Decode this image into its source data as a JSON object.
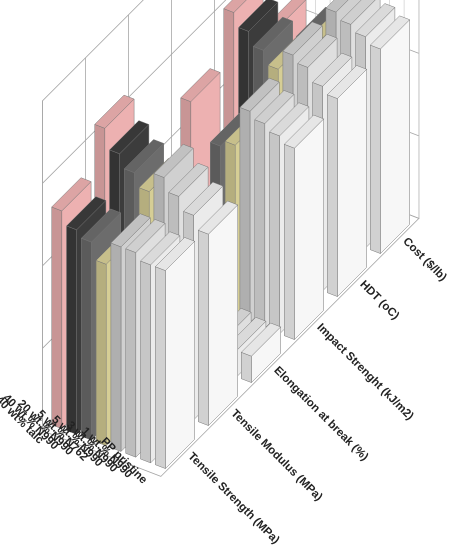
{
  "chart_data": {
    "type": "bar",
    "subtype": "3d-grouped-bar",
    "title": "",
    "categories": [
      "PP pristine",
      "1 wt.% N990",
      "3 wt.% N990",
      "5 wt.% N990",
      "5 wt.% N762",
      "20 wt.% N990",
      "40 wt.% N990",
      "PP / 40 wt% talc"
    ],
    "properties": [
      "Tensile Strength (MPa)",
      "Tensile Modulus (MPa)",
      "Elongation at break (%)",
      "Impact Strenght (kJ/m2)",
      "HDT (oC)",
      "Cost ($/lb)"
    ],
    "series_colors": [
      "#ffffff",
      "#f2f2f2",
      "#e6e6e6",
      "#d6d6d6",
      "#ddd49a",
      "#6f6f6f",
      "#3e3e3e",
      "#f4b6b6"
    ],
    "relative_values": [
      [
        0.6,
        0.6,
        0.62,
        0.62,
        0.55,
        0.6,
        0.62,
        0.66
      ],
      [
        0.58,
        0.62,
        0.66,
        0.7,
        0.64,
        0.68,
        0.72,
        0.78
      ],
      [
        0.08,
        0.08,
        0.09,
        0.09,
        0.06,
        0.03,
        0.02,
        0.02
      ],
      [
        0.58,
        0.6,
        0.62,
        0.64,
        0.52,
        0.5,
        0.3,
        0.6
      ],
      [
        0.6,
        0.62,
        0.66,
        0.68,
        0.62,
        0.66,
        0.7,
        0.74
      ],
      [
        0.62,
        0.64,
        0.66,
        0.68,
        0.58,
        0.56,
        0.48,
        0.56
      ]
    ]
  }
}
